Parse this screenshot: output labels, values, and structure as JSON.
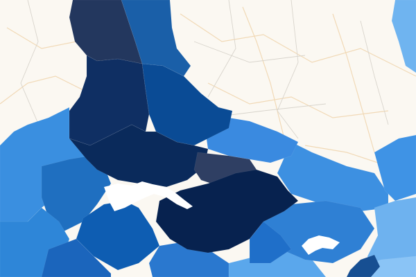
{
  "map": {
    "colors": {
      "background": "#fbf8f2",
      "road": "#f1d9b6",
      "border": "#d8d4cc",
      "water": "#ffffff",
      "regions": {
        "r1": "#23375e",
        "r2": "#1a5fa8",
        "r3": "#0f2f63",
        "r4": "#0a4b95",
        "r5": "#0a2a5b",
        "r6": "#2e86d8",
        "r7": "#3a8fe0",
        "r8": "#1f6fc0",
        "r9": "#0e5db2",
        "r10": "#07224f",
        "r11": "#2f3f63",
        "r12": "#1b65bc",
        "r13": "#3d90e1",
        "r14": "#5aa7ec",
        "r15": "#6fb4f0",
        "r16": "#8ac4f6",
        "r17": "#2f80d4",
        "r18": "#1f6fc9",
        "r19": "#2a78cf",
        "r20": "#3a8ae0",
        "r21": "#174f92",
        "r22": "#6eb2ef",
        "r23": "#3f93e5"
      }
    }
  }
}
